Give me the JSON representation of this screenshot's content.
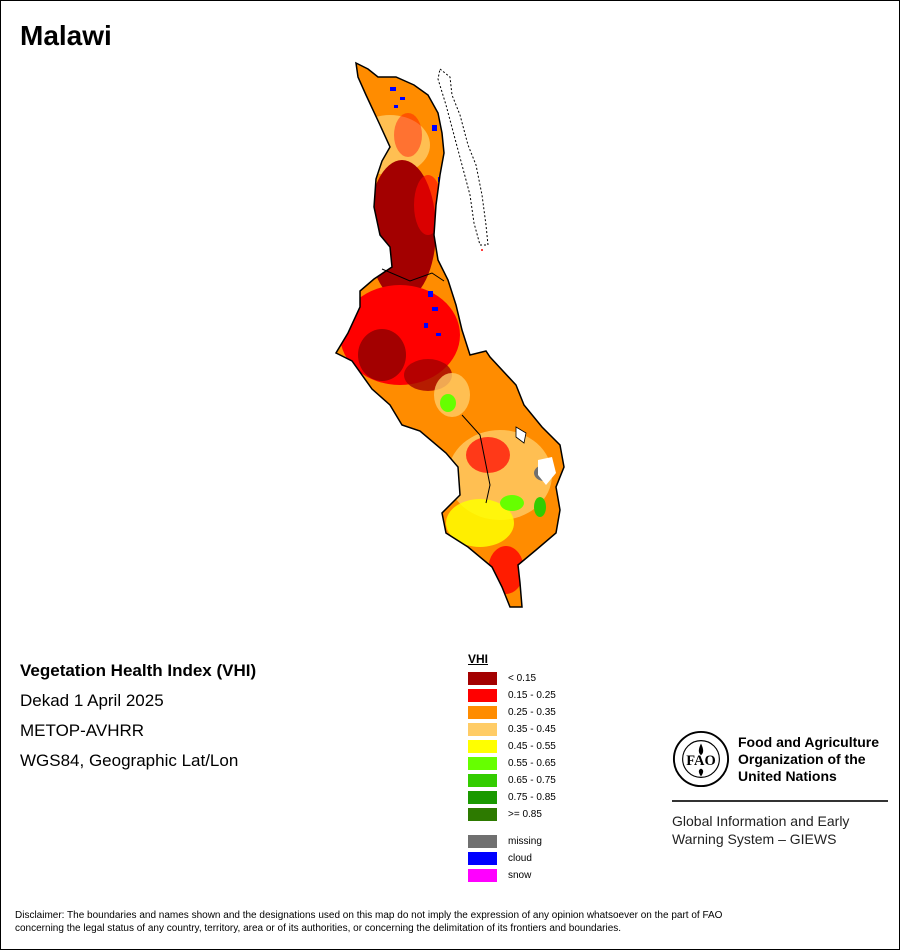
{
  "title": "Malawi",
  "metadata": {
    "index_title": "Vegetation Health Index (VHI)",
    "period": "Dekad 1 April 2025",
    "sensor": "METOP-AVHRR",
    "projection": "WGS84, Geographic Lat/Lon"
  },
  "legend": {
    "title": "VHI",
    "classes": [
      {
        "label": "< 0.15",
        "color": "#a30000"
      },
      {
        "label": "0.15 - 0.25",
        "color": "#ff0000"
      },
      {
        "label": "0.25 - 0.35",
        "color": "#ff8c00"
      },
      {
        "label": "0.35 - 0.45",
        "color": "#ffcc66"
      },
      {
        "label": "0.45 - 0.55",
        "color": "#ffff00"
      },
      {
        "label": "0.55 - 0.65",
        "color": "#66ff00"
      },
      {
        "label": "0.65 - 0.75",
        "color": "#33cc00"
      },
      {
        "label": "0.75 - 0.85",
        "color": "#1a9900"
      },
      {
        "label": ">= 0.85",
        "color": "#2d7a00"
      }
    ],
    "special": [
      {
        "label": "missing",
        "color": "#707070"
      },
      {
        "label": "cloud",
        "color": "#0000ff"
      },
      {
        "label": "snow",
        "color": "#ff00ff"
      }
    ]
  },
  "organization": {
    "logo_text": "FAO",
    "name_line1": "Food and Agriculture",
    "name_line2": "Organization of the",
    "name_line3": "United Nations",
    "program_line1": "Global Information and Early",
    "program_line2": "Warning System – GIEWS"
  },
  "disclaimer_line1": "Disclaimer: The boundaries and names shown and the designations used on this map do not imply the expression of any opinion whatsoever on the part of FAO",
  "disclaimer_line2": "concerning the legal status of any country, territory, area or of its authorities, or concerning the delimitation of its frontiers and boundaries."
}
